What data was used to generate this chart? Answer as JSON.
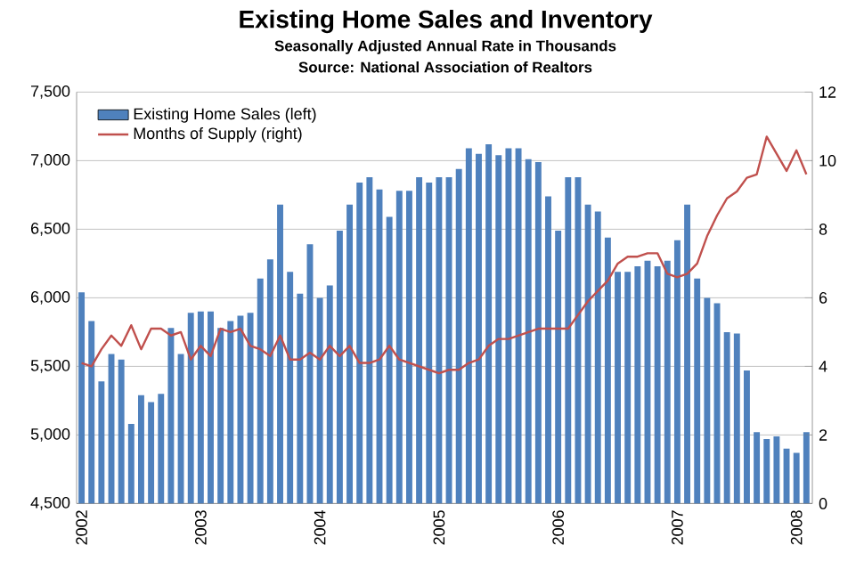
{
  "chart_data": {
    "type": "bar",
    "title": "Existing Home Sales and Inventory",
    "subtitle": "Seasonally Adjusted Annual Rate in Thousands",
    "annotations": [
      "Source: National Association of Realtors"
    ],
    "categories": [
      "2002",
      null,
      null,
      null,
      null,
      null,
      null,
      null,
      null,
      null,
      null,
      null,
      "2003",
      null,
      null,
      null,
      null,
      null,
      null,
      null,
      null,
      null,
      null,
      null,
      "2004",
      null,
      null,
      null,
      null,
      null,
      null,
      null,
      null,
      null,
      null,
      null,
      "2005",
      null,
      null,
      null,
      null,
      null,
      null,
      null,
      null,
      null,
      null,
      null,
      "2006",
      null,
      null,
      null,
      null,
      null,
      null,
      null,
      null,
      null,
      null,
      null,
      "2007",
      null,
      null,
      null,
      null,
      null,
      null,
      null,
      null,
      null,
      null,
      null,
      "2008",
      null
    ],
    "series": [
      {
        "name": "Existing Home Sales (left)",
        "color": "#4f81bd",
        "values": [
          6040,
          5830,
          5390,
          5590,
          5550,
          5080,
          5290,
          5240,
          5300,
          5780,
          5590,
          5890,
          5900,
          5900,
          5780,
          5830,
          5870,
          5890,
          6140,
          6280,
          6680,
          6190,
          6030,
          6390,
          6000,
          6090,
          6490,
          6680,
          6840,
          6880,
          6790,
          6590,
          6780,
          6780,
          6880,
          6840,
          6880,
          6880,
          6940,
          7090,
          7050,
          7120,
          7040,
          7090,
          7090,
          7010,
          6990,
          6740,
          6490,
          6880,
          6880,
          6680,
          6630,
          6440,
          6190,
          6190,
          6230,
          6270,
          6230,
          6270,
          6420,
          6680,
          6140,
          6000,
          5960,
          5750,
          5740,
          5470,
          5020,
          4970,
          4990,
          4900,
          4870,
          5020
        ]
      },
      {
        "name": "Months of Supply (right)",
        "type": "line",
        "axis": "y2",
        "color": "#c0504d",
        "values": [
          4.1,
          4.0,
          4.5,
          4.9,
          4.6,
          5.2,
          4.5,
          5.1,
          5.1,
          4.9,
          5.0,
          4.2,
          4.6,
          4.3,
          5.1,
          5.0,
          5.1,
          4.6,
          4.5,
          4.3,
          4.9,
          4.2,
          4.2,
          4.4,
          4.2,
          4.6,
          4.3,
          4.6,
          4.1,
          4.1,
          4.2,
          4.6,
          4.2,
          4.1,
          4.0,
          3.9,
          3.8,
          3.9,
          3.9,
          4.1,
          4.2,
          4.6,
          4.8,
          4.8,
          4.9,
          5.0,
          5.1,
          5.1,
          5.1,
          5.1,
          5.5,
          5.9,
          6.2,
          6.5,
          7.0,
          7.2,
          7.2,
          7.3,
          7.3,
          6.7,
          6.6,
          6.7,
          7.0,
          7.8,
          8.4,
          8.9,
          9.1,
          9.5,
          9.6,
          10.7,
          10.2,
          9.7,
          10.3,
          9.6
        ]
      }
    ],
    "ylim": [
      4500,
      7500
    ],
    "yticks": [
      {
        "value": 4500,
        "label": "4,500"
      },
      {
        "value": 5000,
        "label": "5,000"
      },
      {
        "value": 5500,
        "label": "5,500"
      },
      {
        "value": 6000,
        "label": "6,000"
      },
      {
        "value": 6500,
        "label": "6,500"
      },
      {
        "value": 7000,
        "label": "7,000"
      },
      {
        "value": 7500,
        "label": "7,500"
      }
    ],
    "y2lim": [
      0,
      12
    ],
    "y2ticks": [
      0,
      2,
      4,
      6,
      8,
      10,
      12
    ],
    "grid": "y",
    "legend": "top left",
    "marker": "none",
    "line_style": "solid"
  }
}
